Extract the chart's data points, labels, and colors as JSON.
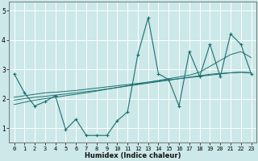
{
  "xlabel": "Humidex (Indice chaleur)",
  "background_color": "#cce8e8",
  "line_color": "#1a7070",
  "grid_color": "#ffffff",
  "x_values": [
    0,
    1,
    2,
    3,
    4,
    5,
    6,
    7,
    8,
    9,
    10,
    11,
    12,
    13,
    14,
    15,
    16,
    17,
    18,
    19,
    20,
    21,
    22,
    23
  ],
  "y_main": [
    2.85,
    2.2,
    1.75,
    1.9,
    2.1,
    0.95,
    1.3,
    0.75,
    0.75,
    0.75,
    1.25,
    1.55,
    3.5,
    4.75,
    2.85,
    2.65,
    1.75,
    3.6,
    2.75,
    3.85,
    2.75,
    4.2,
    3.85,
    2.85
  ],
  "y_line1": [
    2.05,
    2.1,
    2.15,
    2.2,
    2.22,
    2.25,
    2.28,
    2.32,
    2.36,
    2.4,
    2.44,
    2.48,
    2.52,
    2.56,
    2.6,
    2.64,
    2.68,
    2.72,
    2.76,
    2.8,
    2.84,
    2.88,
    2.9,
    2.88
  ],
  "y_line2": [
    1.95,
    2.0,
    2.05,
    2.08,
    2.12,
    2.16,
    2.2,
    2.24,
    2.28,
    2.33,
    2.38,
    2.43,
    2.48,
    2.53,
    2.58,
    2.63,
    2.68,
    2.73,
    2.78,
    2.83,
    2.86,
    2.88,
    2.9,
    2.88
  ],
  "y_line3": [
    1.8,
    1.88,
    1.95,
    2.0,
    2.05,
    2.1,
    2.15,
    2.2,
    2.26,
    2.32,
    2.38,
    2.44,
    2.5,
    2.56,
    2.62,
    2.68,
    2.74,
    2.8,
    2.9,
    3.1,
    3.3,
    3.5,
    3.6,
    3.4
  ],
  "ylim": [
    0.5,
    5.3
  ],
  "yticks": [
    1,
    2,
    3,
    4,
    5
  ],
  "xlim": [
    -0.5,
    23.5
  ],
  "xtick_fontsize": 5.0,
  "ytick_fontsize": 5.5,
  "xlabel_fontsize": 6.0
}
